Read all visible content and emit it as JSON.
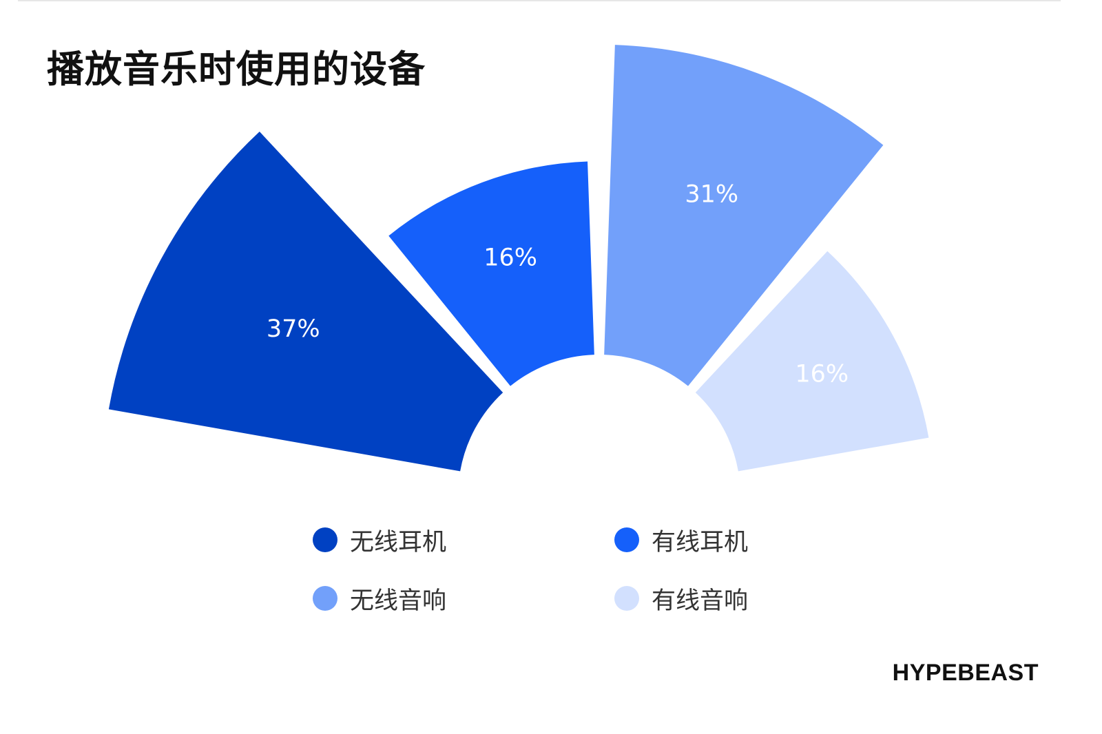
{
  "title": "播放音乐时使用的设备",
  "brand": "HYPEBEAST",
  "chart_data": {
    "type": "pie",
    "title": "播放音乐时使用的设备",
    "style": "half-rose",
    "categories": [
      "无线耳机",
      "有线耳机",
      "无线音响",
      "有线音响"
    ],
    "values": [
      37,
      16,
      31,
      16
    ],
    "labels": [
      "37%",
      "16%",
      "31%",
      "16%"
    ],
    "colors": [
      "#0041C2",
      "#1560FA",
      "#72A0FA",
      "#D2E0FE"
    ],
    "label_color": "#ffffff",
    "legend_position": "bottom"
  },
  "legend": [
    {
      "label": "无线耳机",
      "color": "#0041C2"
    },
    {
      "label": "有线耳机",
      "color": "#1560FA"
    },
    {
      "label": "无线音响",
      "color": "#72A0FA"
    },
    {
      "label": "有线音响",
      "color": "#D2E0FE"
    }
  ]
}
